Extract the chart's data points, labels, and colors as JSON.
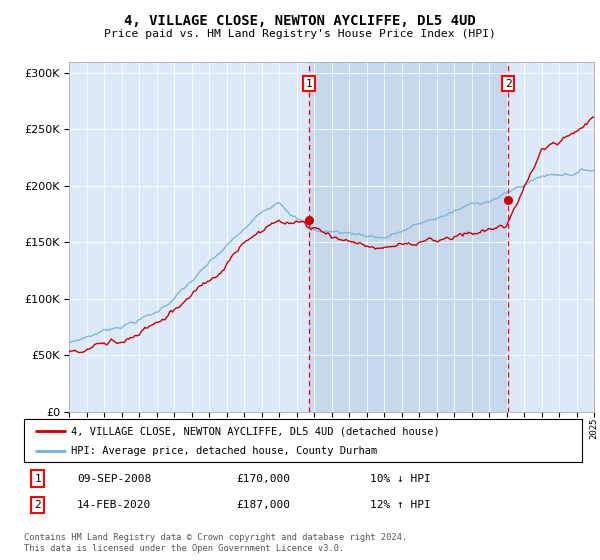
{
  "title": "4, VILLAGE CLOSE, NEWTON AYCLIFFE, DL5 4UD",
  "subtitle": "Price paid vs. HM Land Registry's House Price Index (HPI)",
  "legend_label_red": "4, VILLAGE CLOSE, NEWTON AYCLIFFE, DL5 4UD (detached house)",
  "legend_label_blue": "HPI: Average price, detached house, County Durham",
  "marker1_date": "09-SEP-2008",
  "marker1_price": 170000,
  "marker1_label": "10% ↓ HPI",
  "marker2_date": "14-FEB-2020",
  "marker2_price": 187000,
  "marker2_label": "12% ↑ HPI",
  "footnote": "Contains HM Land Registry data © Crown copyright and database right 2024.\nThis data is licensed under the Open Government Licence v3.0.",
  "plot_bg_color": "#dce9f8",
  "red_color": "#cc0000",
  "blue_color": "#7aafd4",
  "span_color": "#c5d8ee",
  "ylim": [
    0,
    310000
  ],
  "yticks": [
    0,
    50000,
    100000,
    150000,
    200000,
    250000,
    300000
  ],
  "x_start_year": 1995,
  "x_end_year": 2025,
  "marker1_year": 2008.7,
  "marker2_year": 2020.1
}
